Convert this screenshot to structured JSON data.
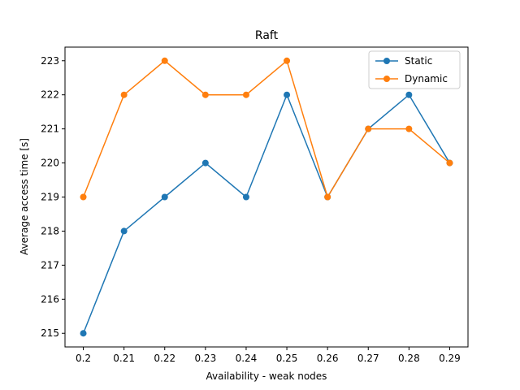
{
  "chart_data": {
    "type": "line",
    "title": "Raft",
    "xlabel": "Availability - weak nodes",
    "ylabel": "Average access time [s]",
    "x": [
      0.2,
      0.21,
      0.22,
      0.23,
      0.24,
      0.25,
      0.26,
      0.27,
      0.28,
      0.29
    ],
    "x_tick_labels": [
      "0.2",
      "0.21",
      "0.22",
      "0.23",
      "0.24",
      "0.25",
      "0.26",
      "0.27",
      "0.28",
      "0.29"
    ],
    "y_ticks": [
      215,
      216,
      217,
      218,
      219,
      220,
      221,
      222,
      223
    ],
    "xlim": [
      0.1955,
      0.2945
    ],
    "ylim": [
      214.6,
      223.4
    ],
    "grid": false,
    "legend_position": "top-right",
    "series": [
      {
        "name": "Static",
        "color": "#1f77b4",
        "marker": "circle",
        "values": [
          215,
          218,
          219,
          220,
          219,
          222,
          219,
          221,
          222,
          220
        ]
      },
      {
        "name": "Dynamic",
        "color": "#ff7f0e",
        "marker": "circle",
        "values": [
          219,
          222,
          223,
          222,
          222,
          223,
          219,
          221,
          221,
          220
        ]
      }
    ]
  }
}
